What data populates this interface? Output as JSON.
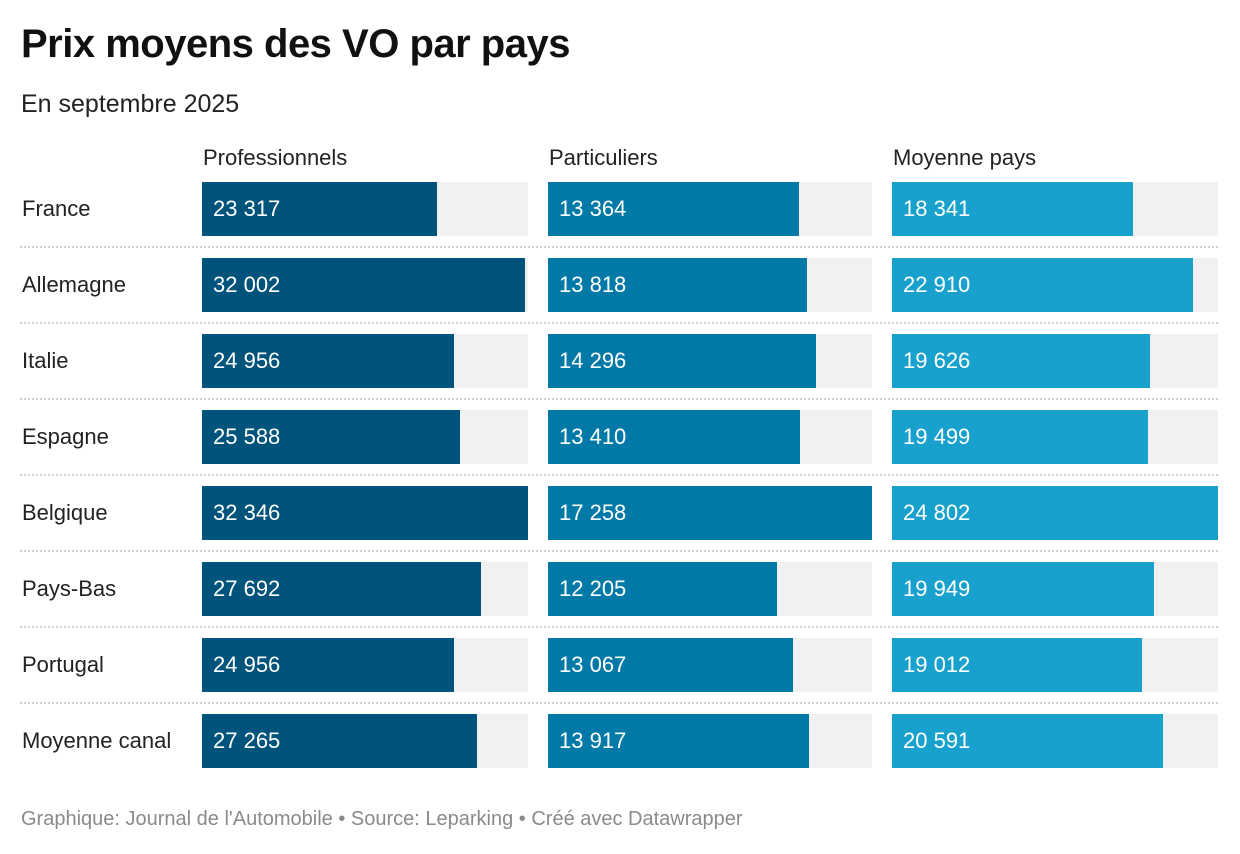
{
  "header": {
    "title": "Prix moyens des VO par pays",
    "subtitle": "En septembre 2025"
  },
  "footer": {
    "text": "Graphique: Journal de l'Automobile • Source: Leparking  • Créé avec Datawrapper"
  },
  "chart_data": {
    "type": "bar",
    "orientation": "horizontal",
    "layout": "split bars (small multiples per column)",
    "categories": [
      "France",
      "Allemagne",
      "Italie",
      "Espagne",
      "Belgique",
      "Pays-Bas",
      "Portugal",
      "Moyenne canal"
    ],
    "series": [
      {
        "name": "Professionnels",
        "color": "#00537a",
        "values": [
          23317,
          32002,
          24956,
          25588,
          32346,
          27692,
          24956,
          27265
        ],
        "labels": [
          "23 317",
          "32 002",
          "24 956",
          "25 588",
          "32 346",
          "27 692",
          "24 956",
          "27 265"
        ]
      },
      {
        "name": "Particuliers",
        "color": "#0279a6",
        "values": [
          13364,
          13818,
          14296,
          13410,
          17258,
          12205,
          13067,
          13917
        ],
        "labels": [
          "13 364",
          "13 818",
          "14 296",
          "13 410",
          "17 258",
          "12 205",
          "13 067",
          "13 917"
        ]
      },
      {
        "name": "Moyenne pays",
        "color": "#18a1cd",
        "values": [
          18341,
          22910,
          19626,
          19499,
          24802,
          19949,
          19012,
          20591
        ],
        "labels": [
          "18 341",
          "22 910",
          "19 626",
          "19 499",
          "24 802",
          "19 949",
          "19 012",
          "20 591"
        ]
      }
    ],
    "track_color": "#f1f1f1",
    "grid": false,
    "legend": "column headers"
  }
}
